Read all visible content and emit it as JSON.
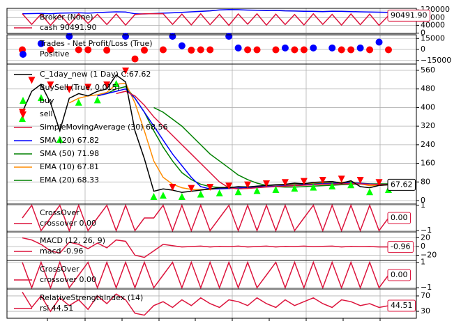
{
  "chart_data": [
    {
      "type": "line",
      "title": "Broker (None)",
      "ylim": [
        -2000,
        128000
      ],
      "yticks": [
        0,
        40000,
        80000,
        120000
      ],
      "grid": true,
      "last_label": "90491.90",
      "label_color": "#dc143c",
      "series": [
        {
          "name": "cash 90491.90",
          "color": "#dc143c",
          "style": "line",
          "values": [
            100000,
            45000,
            98000,
            40000,
            95000,
            42000,
            100000,
            50000,
            97000,
            44000,
            99000,
            41000,
            96000,
            100000,
            100000,
            100000,
            45000,
            98000,
            42000,
            100000,
            43000,
            97000,
            40000,
            99000,
            46000,
            100000,
            41000,
            98000,
            44000,
            96000,
            42000,
            100000,
            45000,
            97000,
            41000,
            99000,
            43000,
            98000,
            40000,
            90491.9
          ]
        },
        {
          "color": "#0000ff",
          "style": "line",
          "values": [
            100000,
            101000,
            102000,
            100000,
            103000,
            104000,
            105000,
            103000,
            106000,
            108000,
            110000,
            109000,
            100000,
            99000,
            101000,
            103000,
            105000,
            107000,
            110000,
            112000,
            115000,
            120000,
            122000,
            121000,
            119000,
            118000,
            116000,
            117000,
            115000,
            114000,
            113000,
            112000,
            111000,
            113000,
            112000,
            111000,
            110000,
            109000,
            108000,
            107000
          ]
        }
      ]
    },
    {
      "type": "scatter",
      "title": "Trades - Net Profit/Loss (True)",
      "ylim": [
        -20000,
        20000
      ],
      "yticks": [
        {
          "value": -15000,
          "label": "−15000"
        },
        0,
        15000
      ],
      "grid": true,
      "series": [
        {
          "name": "Positive",
          "color": "#0000ff",
          "style": "dot",
          "values": [
            null,
            null,
            8000,
            null,
            null,
            18000,
            null,
            null,
            null,
            null,
            null,
            18000,
            null,
            null,
            null,
            null,
            18000,
            5000,
            null,
            null,
            null,
            null,
            18000,
            2000,
            null,
            null,
            null,
            null,
            2000,
            null,
            null,
            2000,
            null,
            2000,
            null,
            null,
            2000,
            null,
            10000,
            null
          ]
        },
        {
          "color": "#ff0000",
          "style": "dot",
          "values": [
            -500,
            null,
            null,
            -500,
            null,
            null,
            -500,
            -500,
            null,
            -1000,
            null,
            null,
            -13000,
            -1000,
            null,
            -500,
            null,
            null,
            -1000,
            -500,
            -500,
            null,
            null,
            null,
            -500,
            -500,
            null,
            -500,
            null,
            -500,
            -500,
            null,
            null,
            null,
            -500,
            -500,
            null,
            -500,
            null,
            -500
          ]
        }
      ]
    },
    {
      "type": "line",
      "ylim": [
        -15,
        587
      ],
      "yticks": [
        0,
        80,
        160,
        240,
        320,
        400,
        480,
        560
      ],
      "grid": true,
      "last_label": "67.62",
      "label_color": "#000000",
      "group_title": "BuySell (True, 0.015)",
      "series": [
        {
          "name": "C_1day_new (1 Day) C:67.62",
          "color": "#000000",
          "style": "line",
          "values": [
            380,
            470,
            500,
            420,
            300,
            440,
            460,
            450,
            470,
            480,
            540,
            510,
            300,
            180,
            40,
            50,
            45,
            35,
            40,
            45,
            50,
            55,
            55,
            60,
            58,
            62,
            65,
            68,
            70,
            75,
            72,
            78,
            80,
            82,
            75,
            85,
            60,
            55,
            65,
            67.62
          ]
        },
        {
          "name": "buy",
          "color": "#00ff00",
          "style": "triangle-up",
          "values": [
            350,
            null,
            440,
            null,
            260,
            null,
            420,
            null,
            430,
            null,
            500,
            null,
            null,
            null,
            15,
            20,
            null,
            15,
            null,
            25,
            null,
            30,
            null,
            35,
            null,
            40,
            null,
            45,
            null,
            50,
            null,
            55,
            null,
            60,
            null,
            65,
            null,
            35,
            null,
            45
          ]
        },
        {
          "name": "sell",
          "color": "#ff0000",
          "style": "triangle-down",
          "values": [
            383,
            520,
            null,
            500,
            null,
            480,
            null,
            490,
            null,
            500,
            null,
            560,
            null,
            null,
            null,
            null,
            60,
            null,
            55,
            null,
            60,
            null,
            65,
            null,
            70,
            null,
            75,
            null,
            80,
            null,
            85,
            null,
            90,
            null,
            95,
            null,
            90,
            null,
            80,
            null
          ]
        },
        {
          "name": "SimpleMovingAverage (30) 68.56",
          "color": "#dc143c",
          "style": "line",
          "values": [
            null,
            null,
            null,
            null,
            null,
            null,
            null,
            null,
            null,
            null,
            460,
            470,
            450,
            410,
            360,
            320,
            280,
            240,
            200,
            160,
            120,
            80,
            55,
            50,
            52,
            55,
            58,
            60,
            62,
            64,
            66,
            68,
            70,
            71,
            72,
            73,
            72,
            70,
            69,
            68.56
          ]
        },
        {
          "name": "SMA (20) 67.82",
          "color": "#0000ff",
          "style": "line",
          "values": [
            null,
            null,
            null,
            null,
            null,
            null,
            null,
            null,
            450,
            460,
            470,
            480,
            440,
            380,
            320,
            260,
            200,
            150,
            100,
            60,
            50,
            50,
            52,
            54,
            56,
            58,
            60,
            62,
            64,
            66,
            68,
            70,
            72,
            74,
            75,
            76,
            74,
            71,
            69,
            67.82
          ]
        },
        {
          "name": "SMA (50) 71.98",
          "color": "#008000",
          "style": "line",
          "values": [
            null,
            null,
            null,
            null,
            null,
            null,
            null,
            null,
            null,
            null,
            null,
            null,
            null,
            null,
            400,
            380,
            350,
            320,
            280,
            240,
            200,
            170,
            140,
            110,
            90,
            75,
            65,
            60,
            58,
            58,
            60,
            62,
            64,
            66,
            68,
            70,
            71,
            72,
            72,
            71.98
          ]
        },
        {
          "name": "EMA (10) 67.81",
          "color": "#ff8c00",
          "style": "line",
          "values": [
            null,
            null,
            null,
            null,
            null,
            420,
            440,
            450,
            455,
            465,
            500,
            505,
            420,
            300,
            170,
            100,
            70,
            55,
            48,
            47,
            48,
            52,
            54,
            57,
            58,
            60,
            63,
            66,
            68,
            72,
            73,
            76,
            78,
            80,
            78,
            82,
            72,
            64,
            65,
            67.81
          ]
        },
        {
          "name": "EMA (20) 68.33",
          "color": "#008000",
          "style": "line",
          "values": [
            null,
            null,
            null,
            null,
            null,
            null,
            null,
            null,
            450,
            460,
            480,
            490,
            440,
            380,
            300,
            230,
            170,
            120,
            90,
            70,
            60,
            56,
            57,
            58,
            59,
            60,
            62,
            64,
            66,
            68,
            70,
            72,
            74,
            76,
            77,
            78,
            75,
            72,
            70,
            68.33
          ]
        }
      ]
    },
    {
      "type": "line",
      "title": "CrossOver",
      "ylim": [
        -1.1,
        1.1
      ],
      "yticks": [
        {
          "value": -1,
          "label": "−1"
        },
        1
      ],
      "grid": true,
      "last_label": "0.00",
      "label_color": "#dc143c",
      "series": [
        {
          "name": "crossover 0.00",
          "color": "#dc143c",
          "style": "line",
          "values": [
            0,
            1,
            -1,
            0,
            1,
            -1,
            1,
            -1,
            0,
            1,
            -1,
            1,
            -1,
            0,
            0,
            1,
            -1,
            1,
            -1,
            1,
            -1,
            0,
            1,
            -1,
            1,
            -1,
            1,
            -1,
            1,
            -1,
            0,
            1,
            -1,
            1,
            -1,
            1,
            -1,
            1,
            -1,
            0
          ]
        }
      ]
    },
    {
      "type": "line",
      "title": "MACD (12, 26, 9)",
      "ylim": [
        -32,
        33.6
      ],
      "yticks": [
        {
          "value": -20,
          "label": "−20"
        },
        0,
        20
      ],
      "grid": true,
      "last_label": "-0.96",
      "label_color": "#dc143c",
      "series": [
        {
          "name": "macd -0.96",
          "color": "#dc143c",
          "style": "line",
          "values": [
            20,
            15,
            5,
            -10,
            -15,
            10,
            5,
            -5,
            8,
            -3,
            15,
            12,
            -20,
            -25,
            -10,
            5,
            2,
            -1,
            0,
            1,
            -1,
            0.5,
            -0.5,
            1,
            -1,
            0,
            1,
            -1,
            0.5,
            0,
            1,
            -0.5,
            0.5,
            1,
            -1,
            0.5,
            -0.5,
            0,
            -1,
            -0.96
          ]
        }
      ]
    },
    {
      "type": "line",
      "title": "CrossOver",
      "ylim": [
        -1.1,
        1.15
      ],
      "yticks": [
        {
          "value": -1,
          "label": "−1"
        },
        1
      ],
      "grid": true,
      "last_label": "0.00",
      "label_color": "#dc143c",
      "series": [
        {
          "name": "crossover 0.00",
          "color": "#dc143c",
          "style": "line",
          "values": [
            1,
            -1,
            1,
            -1,
            1,
            -1,
            0,
            1,
            -1,
            1,
            -1,
            1,
            -1,
            1,
            -1,
            0,
            1,
            -1,
            1,
            -1,
            1,
            -1,
            1,
            -1,
            1,
            -1,
            0,
            1,
            -1,
            1,
            -1,
            1,
            -1,
            1,
            -1,
            1,
            -1,
            1,
            -1,
            0
          ]
        }
      ]
    },
    {
      "type": "line",
      "title": "RelativeStrengthIndex (14)",
      "ylim": [
        12,
        88
      ],
      "yticks": [
        30,
        70
      ],
      "grid": true,
      "last_label": "44.51",
      "label_color": "#dc143c",
      "series": [
        {
          "name": "rsi 44.51",
          "color": "#dc143c",
          "style": "line",
          "values": [
            80,
            40,
            70,
            30,
            65,
            45,
            60,
            35,
            70,
            50,
            75,
            60,
            25,
            20,
            45,
            55,
            40,
            60,
            45,
            65,
            50,
            40,
            60,
            55,
            45,
            65,
            50,
            40,
            60,
            45,
            55,
            65,
            50,
            40,
            60,
            55,
            45,
            50,
            40,
            44.51
          ]
        }
      ]
    }
  ]
}
